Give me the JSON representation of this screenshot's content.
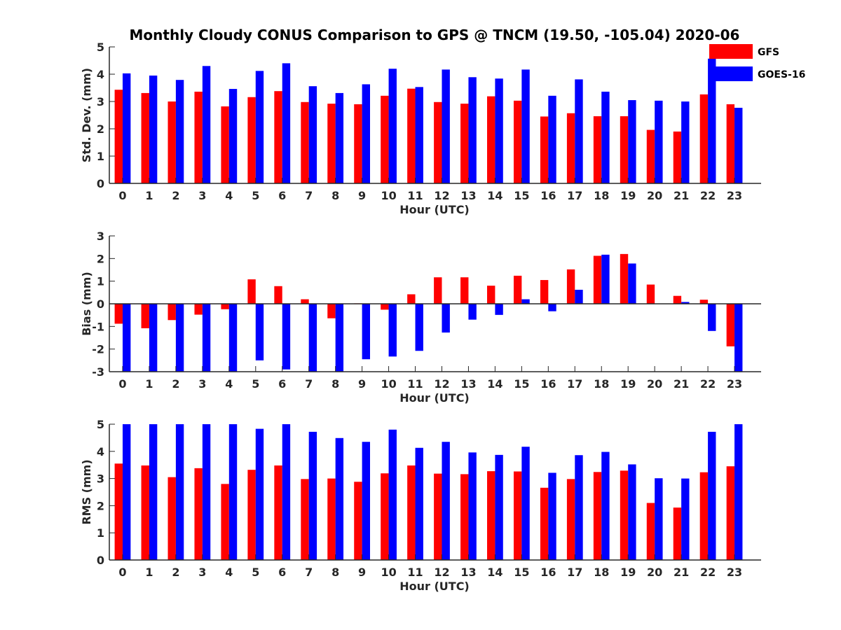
{
  "title": "Monthly Cloudy CONUS Comparison to GPS @ TNCM (19.50, -105.04) 2020-06",
  "legend": {
    "placement": "top-right",
    "entries": [
      {
        "name": "GFS",
        "color": "#ff0000"
      },
      {
        "name": "GOES-16",
        "color": "#0000ff"
      }
    ]
  },
  "chart_data": [
    {
      "type": "bar",
      "xlabel": "Hour (UTC)",
      "ylabel": "Std. Dev. (mm)",
      "ylim": [
        0,
        5
      ],
      "yticks": [
        0,
        1,
        2,
        3,
        4,
        5
      ],
      "categories": [
        "0",
        "1",
        "2",
        "3",
        "4",
        "5",
        "6",
        "7",
        "8",
        "9",
        "10",
        "11",
        "12",
        "13",
        "14",
        "15",
        "16",
        "17",
        "18",
        "19",
        "20",
        "21",
        "22",
        "23"
      ],
      "series": [
        {
          "name": "GFS",
          "color": "#ff0000",
          "values": [
            3.43,
            3.31,
            3.0,
            3.36,
            2.82,
            3.16,
            3.38,
            2.98,
            2.92,
            2.9,
            3.21,
            3.47,
            2.98,
            2.92,
            3.19,
            3.03,
            2.45,
            2.57,
            2.46,
            2.46,
            1.96,
            1.9,
            3.26,
            2.9
          ]
        },
        {
          "name": "GOES-16",
          "color": "#0000ff",
          "values": [
            4.03,
            3.95,
            3.79,
            4.3,
            3.46,
            4.12,
            4.4,
            3.56,
            3.31,
            3.63,
            4.2,
            3.53,
            4.17,
            3.89,
            3.84,
            4.17,
            3.21,
            3.81,
            3.36,
            3.05,
            3.03,
            3.0,
            4.57,
            2.77
          ]
        }
      ]
    },
    {
      "type": "bar",
      "xlabel": "Hour (UTC)",
      "ylabel": "Bias (mm)",
      "ylim": [
        -3,
        3
      ],
      "yticks": [
        -3,
        -2,
        -1,
        0,
        1,
        2,
        3
      ],
      "categories": [
        "0",
        "1",
        "2",
        "3",
        "4",
        "5",
        "6",
        "7",
        "8",
        "9",
        "10",
        "11",
        "12",
        "13",
        "14",
        "15",
        "16",
        "17",
        "18",
        "19",
        "20",
        "21",
        "22",
        "23"
      ],
      "series": [
        {
          "name": "GFS",
          "color": "#ff0000",
          "values": [
            -0.88,
            -1.08,
            -0.72,
            -0.48,
            -0.24,
            1.08,
            0.78,
            0.2,
            -0.64,
            0.02,
            -0.26,
            0.42,
            1.17,
            1.17,
            0.8,
            1.24,
            1.05,
            1.52,
            2.12,
            2.2,
            0.85,
            0.35,
            0.18,
            -1.88
          ]
        },
        {
          "name": "GOES-16",
          "color": "#0000ff",
          "values": [
            -3.0,
            -3.0,
            -3.0,
            -3.0,
            -3.0,
            -2.5,
            -2.9,
            -3.0,
            -3.0,
            -2.45,
            -2.33,
            -2.08,
            -1.27,
            -0.7,
            -0.49,
            0.2,
            -0.33,
            0.62,
            2.17,
            1.78,
            0.0,
            0.08,
            -1.2,
            -3.0
          ]
        }
      ]
    },
    {
      "type": "bar",
      "xlabel": "Hour (UTC)",
      "ylabel": "RMS (mm)",
      "ylim": [
        0,
        5
      ],
      "yticks": [
        0,
        1,
        2,
        3,
        4,
        5
      ],
      "categories": [
        "0",
        "1",
        "2",
        "3",
        "4",
        "5",
        "6",
        "7",
        "8",
        "9",
        "10",
        "11",
        "12",
        "13",
        "14",
        "15",
        "16",
        "17",
        "18",
        "19",
        "20",
        "21",
        "22",
        "23"
      ],
      "series": [
        {
          "name": "GFS",
          "color": "#ff0000",
          "values": [
            3.55,
            3.48,
            3.05,
            3.38,
            2.8,
            3.32,
            3.48,
            2.98,
            3.0,
            2.88,
            3.19,
            3.48,
            3.18,
            3.16,
            3.27,
            3.26,
            2.66,
            2.98,
            3.24,
            3.29,
            2.1,
            1.93,
            3.23,
            3.45
          ]
        },
        {
          "name": "GOES-16",
          "color": "#0000ff",
          "values": [
            5.0,
            5.0,
            5.0,
            5.0,
            5.0,
            4.83,
            5.0,
            4.72,
            4.49,
            4.35,
            4.8,
            4.13,
            4.35,
            3.96,
            3.87,
            4.17,
            3.21,
            3.86,
            3.98,
            3.52,
            3.01,
            3.0,
            4.72,
            5.0
          ]
        }
      ]
    }
  ]
}
